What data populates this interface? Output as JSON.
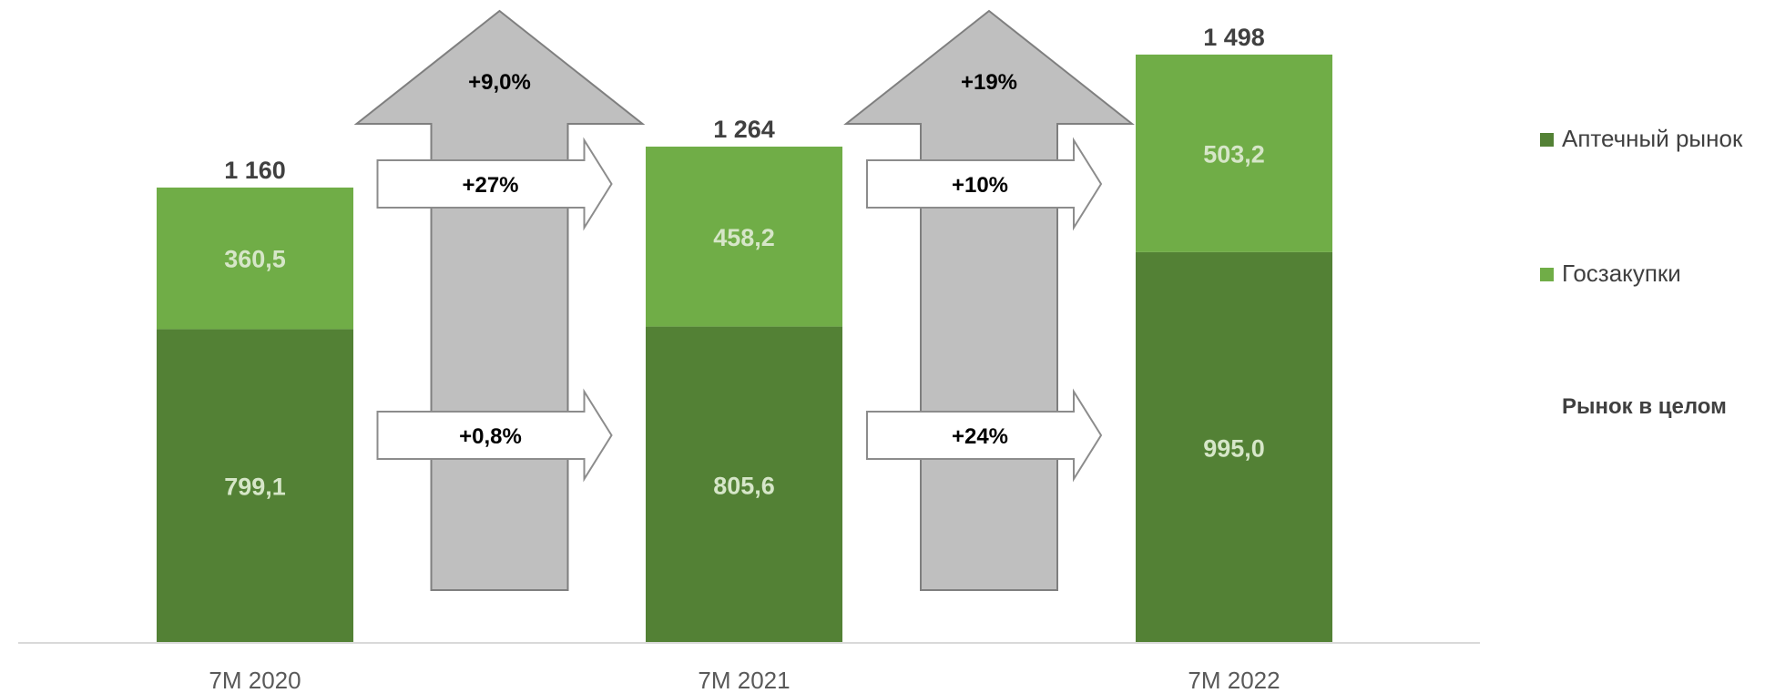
{
  "chart_data": {
    "type": "bar",
    "stacked": true,
    "categories": [
      "7М 2020",
      "7М 2021",
      "7М 2022"
    ],
    "series": [
      {
        "name": "Аптечный рынок",
        "values": [
          799.1,
          805.6,
          995.0
        ],
        "labels": [
          "799,1",
          "805,6",
          "995,0"
        ],
        "color": "#538135"
      },
      {
        "name": "Госзакупки",
        "values": [
          360.5,
          458.2,
          503.2
        ],
        "labels": [
          "360,5",
          "458,2",
          "503,2"
        ],
        "color": "#70ad47"
      }
    ],
    "totals": [
      1160,
      1264,
      1498
    ],
    "total_labels": [
      "1 160",
      "1 264",
      "1 498"
    ],
    "ylim": [
      0,
      1498
    ],
    "grid": false,
    "legend_position": "right",
    "legend_extra": "Рынок в целом",
    "growth": [
      {
        "from": "7М 2020",
        "to": "7М 2021",
        "total": "+9,0%",
        "gov": "+27%",
        "pharmacy": "+0,8%"
      },
      {
        "from": "7М 2021",
        "to": "7М 2022",
        "total": "+19%",
        "gov": "+10%",
        "pharmacy": "+24%"
      }
    ]
  }
}
